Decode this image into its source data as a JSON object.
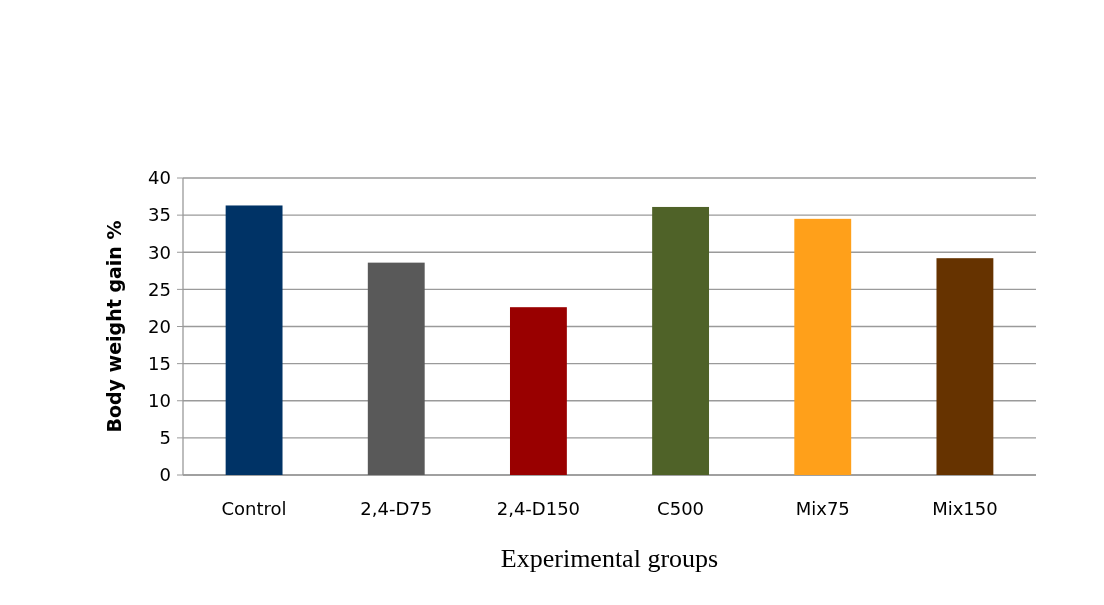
{
  "chart_data": {
    "type": "bar",
    "xlabel": "Experimental groups",
    "ylabel": "Body weight gain %",
    "categories": [
      "Control",
      "2,4-D75",
      "2,4-D150",
      "C500",
      "Mix75",
      "Mix150"
    ],
    "values": [
      36.3,
      28.6,
      22.6,
      36.1,
      34.5,
      29.2
    ],
    "colors": [
      "#003366",
      "#595959",
      "#990000",
      "#4f6228",
      "#ffa01a",
      "#663300"
    ],
    "ylim": [
      0,
      40
    ],
    "yticks": [
      0,
      5,
      10,
      15,
      20,
      25,
      30,
      35,
      40
    ],
    "grid": true
  }
}
